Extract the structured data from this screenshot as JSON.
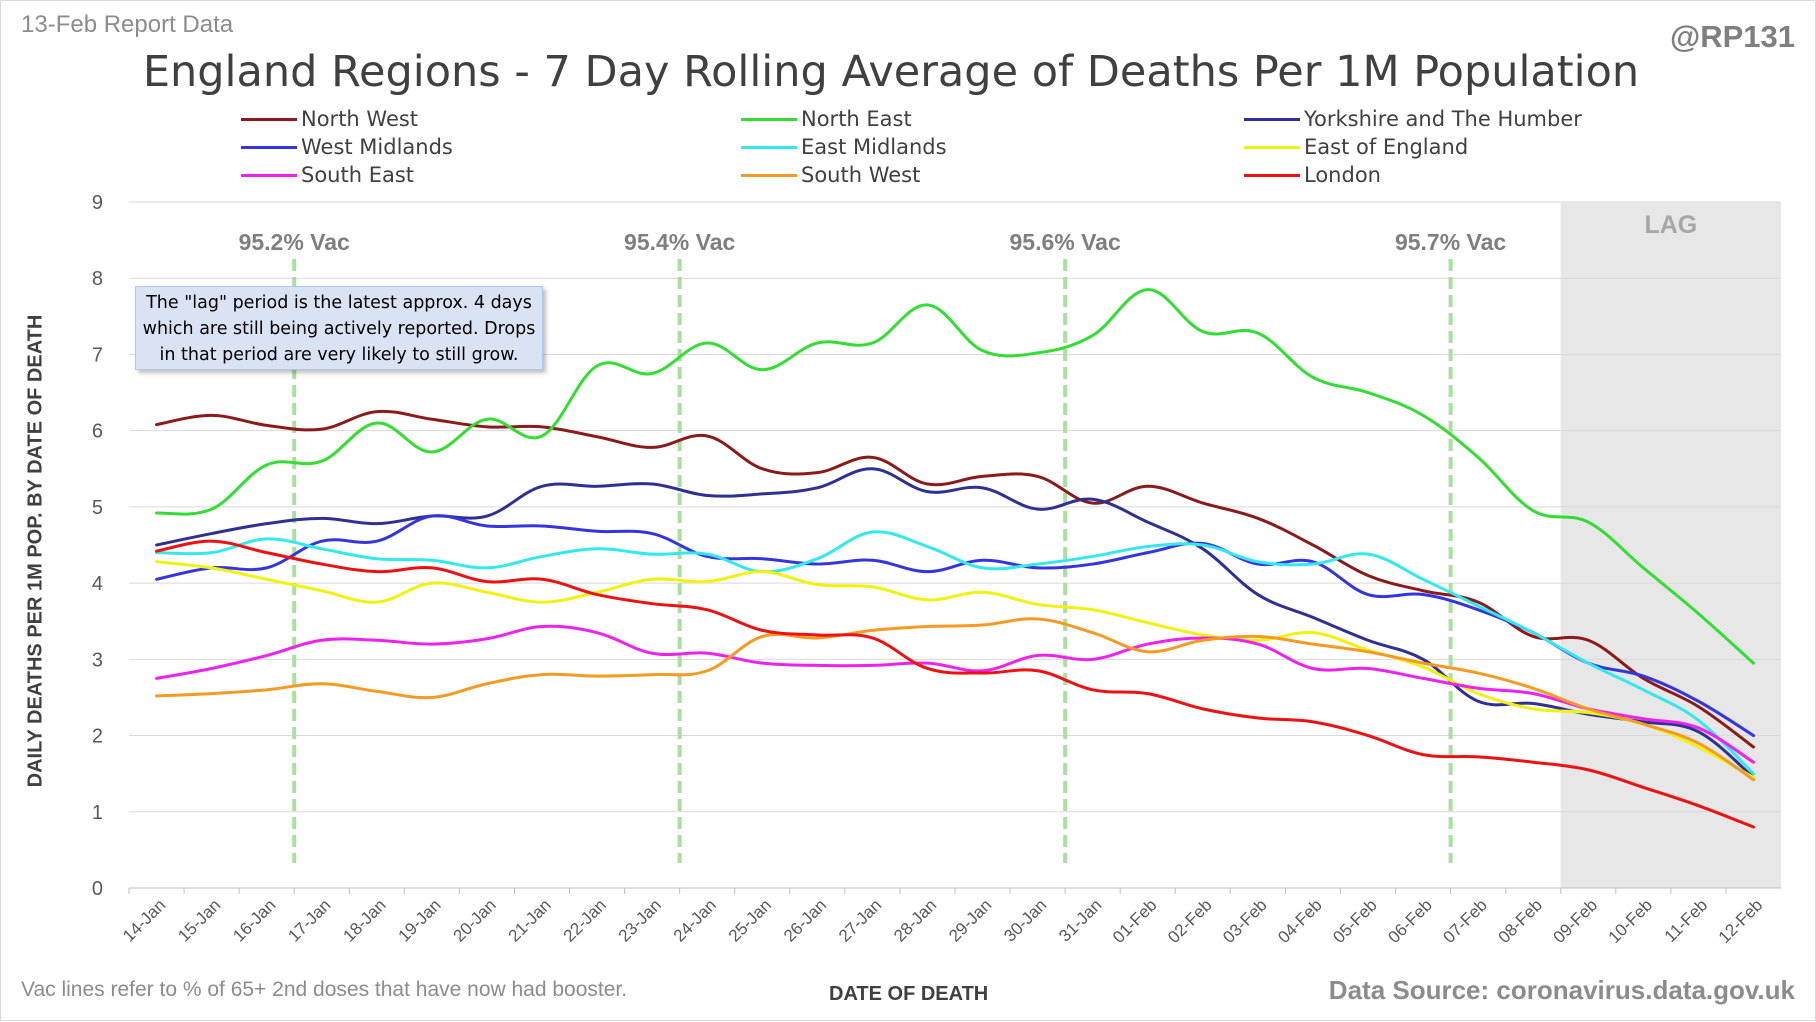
{
  "header": {
    "report_date": "13-Feb Report Data",
    "handle": "@RP131",
    "title": "England Regions - 7 Day Rolling Average of Deaths Per 1M Population"
  },
  "footer": {
    "footnote": "Vac lines refer to % of 65+ 2nd doses that have now had booster.",
    "source": "Data Source: coronavirus.data.gov.uk"
  },
  "note": {
    "lines": [
      "The \"lag\" period is the latest approx. 4 days",
      "which are still being actively reported. Drops",
      "in that period are very likely to still grow."
    ]
  },
  "chart_data": {
    "type": "line",
    "title": "England Regions - 7 Day Rolling Average of Deaths Per 1M Population",
    "xlabel": "DATE OF DEATH",
    "ylabel": "DAILY DEATHS PER 1M POP. BY DATE OF DEATH",
    "ylim": [
      0,
      9
    ],
    "yticks": [
      0,
      1,
      2,
      3,
      4,
      5,
      6,
      7,
      8,
      9
    ],
    "grid": true,
    "legend_position": "top",
    "categories": [
      "14-Jan",
      "15-Jan",
      "16-Jan",
      "17-Jan",
      "18-Jan",
      "19-Jan",
      "20-Jan",
      "21-Jan",
      "22-Jan",
      "23-Jan",
      "24-Jan",
      "25-Jan",
      "26-Jan",
      "27-Jan",
      "28-Jan",
      "29-Jan",
      "30-Jan",
      "31-Jan",
      "01-Feb",
      "02-Feb",
      "03-Feb",
      "04-Feb",
      "05-Feb",
      "06-Feb",
      "07-Feb",
      "08-Feb",
      "09-Feb",
      "10-Feb",
      "11-Feb",
      "12-Feb"
    ],
    "lag": {
      "label": "LAG",
      "start": "09-Feb",
      "end": "12-Feb",
      "color": "#e7e7e7"
    },
    "vac_lines": [
      {
        "label": "95.2% Vac",
        "position": "16-Jan"
      },
      {
        "label": "95.4% Vac",
        "position": "23-Jan"
      },
      {
        "label": "95.6% Vac",
        "position": "30-Jan"
      },
      {
        "label": "95.7% Vac",
        "position": "06-Feb"
      }
    ],
    "series": [
      {
        "name": "North West",
        "color": "#8b1a1a",
        "values": [
          6.08,
          6.2,
          6.07,
          6.02,
          6.25,
          6.15,
          6.05,
          6.05,
          5.92,
          5.78,
          5.93,
          5.5,
          5.45,
          5.65,
          5.3,
          5.4,
          5.4,
          5.05,
          5.27,
          5.05,
          4.85,
          4.5,
          4.1,
          3.9,
          3.75,
          3.3,
          3.25,
          2.75,
          2.38,
          1.85
        ]
      },
      {
        "name": "North East",
        "color": "#33dd33",
        "values": [
          4.92,
          4.97,
          5.55,
          5.6,
          6.1,
          5.72,
          6.15,
          5.93,
          6.85,
          6.75,
          7.15,
          6.8,
          7.15,
          7.15,
          7.65,
          7.05,
          7.02,
          7.25,
          7.85,
          7.3,
          7.28,
          6.7,
          6.5,
          6.2,
          5.65,
          4.95,
          4.8,
          4.2,
          3.6,
          2.95
        ]
      },
      {
        "name": "Yorkshire and The Humber",
        "color": "#2e3192",
        "values": [
          4.5,
          4.65,
          4.78,
          4.85,
          4.78,
          4.88,
          4.88,
          5.27,
          5.27,
          5.3,
          5.15,
          5.17,
          5.25,
          5.5,
          5.2,
          5.25,
          4.97,
          5.1,
          4.8,
          4.45,
          3.85,
          3.55,
          3.25,
          3.0,
          2.45,
          2.42,
          2.28,
          2.18,
          2.05,
          1.45
        ]
      },
      {
        "name": "West Midlands",
        "color": "#3535e0",
        "values": [
          4.05,
          4.2,
          4.2,
          4.55,
          4.55,
          4.88,
          4.75,
          4.75,
          4.68,
          4.65,
          4.35,
          4.32,
          4.25,
          4.3,
          4.15,
          4.3,
          4.2,
          4.25,
          4.4,
          4.52,
          4.25,
          4.28,
          3.85,
          3.85,
          3.65,
          3.35,
          2.95,
          2.78,
          2.45,
          2.0
        ]
      },
      {
        "name": "East Midlands",
        "color": "#33e8ee",
        "values": [
          4.4,
          4.4,
          4.58,
          4.45,
          4.32,
          4.3,
          4.2,
          4.35,
          4.45,
          4.38,
          4.38,
          4.15,
          4.32,
          4.67,
          4.48,
          4.2,
          4.25,
          4.35,
          4.48,
          4.5,
          4.28,
          4.25,
          4.38,
          4.05,
          3.7,
          3.35,
          2.95,
          2.6,
          2.2,
          1.5
        ]
      },
      {
        "name": "East of England",
        "color": "#f2f20f",
        "values": [
          4.28,
          4.2,
          4.05,
          3.9,
          3.75,
          4.0,
          3.88,
          3.75,
          3.88,
          4.05,
          4.02,
          4.15,
          3.98,
          3.95,
          3.78,
          3.88,
          3.72,
          3.65,
          3.48,
          3.32,
          3.25,
          3.35,
          3.12,
          2.9,
          2.55,
          2.35,
          2.3,
          2.15,
          1.85,
          1.45
        ]
      },
      {
        "name": "South East",
        "color": "#ee22ee",
        "values": [
          2.75,
          2.88,
          3.05,
          3.25,
          3.25,
          3.2,
          3.27,
          3.43,
          3.35,
          3.08,
          3.08,
          2.95,
          2.92,
          2.92,
          2.95,
          2.85,
          3.05,
          3.0,
          3.2,
          3.28,
          3.2,
          2.88,
          2.88,
          2.75,
          2.62,
          2.55,
          2.35,
          2.22,
          2.1,
          1.65
        ]
      },
      {
        "name": "South West",
        "color": "#f59a23",
        "values": [
          2.52,
          2.55,
          2.6,
          2.68,
          2.58,
          2.5,
          2.68,
          2.8,
          2.78,
          2.8,
          2.85,
          3.3,
          3.28,
          3.38,
          3.43,
          3.45,
          3.53,
          3.35,
          3.1,
          3.25,
          3.3,
          3.2,
          3.1,
          2.95,
          2.82,
          2.62,
          2.35,
          2.15,
          1.9,
          1.42
        ]
      },
      {
        "name": "London",
        "color": "#ee1111",
        "values": [
          4.42,
          4.55,
          4.4,
          4.25,
          4.15,
          4.2,
          4.02,
          4.05,
          3.85,
          3.73,
          3.65,
          3.38,
          3.32,
          3.28,
          2.88,
          2.82,
          2.85,
          2.6,
          2.55,
          2.35,
          2.23,
          2.18,
          2.0,
          1.75,
          1.72,
          1.65,
          1.55,
          1.32,
          1.08,
          0.8
        ]
      }
    ]
  }
}
